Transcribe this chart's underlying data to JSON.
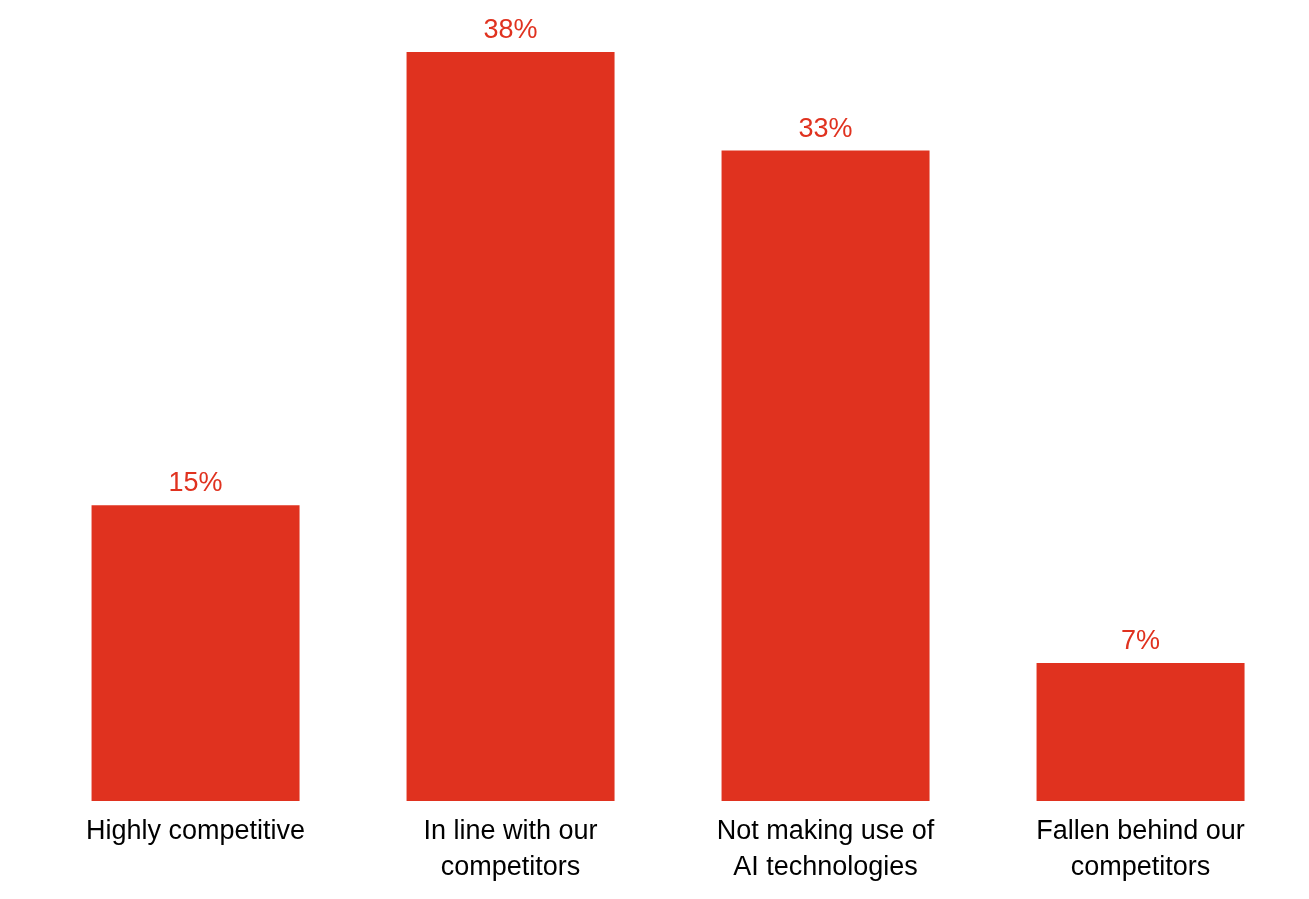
{
  "chart_data": {
    "type": "bar",
    "categories": [
      "Highly competitive",
      "In line with our competitors",
      "Not making use of AI technologies",
      "Fallen behind our competitors"
    ],
    "values": [
      15,
      38,
      33,
      7
    ],
    "color": "#e0321f",
    "value_labels": [
      "15%",
      "38%",
      "33%",
      "7%"
    ],
    "grid": false,
    "legend": false
  }
}
